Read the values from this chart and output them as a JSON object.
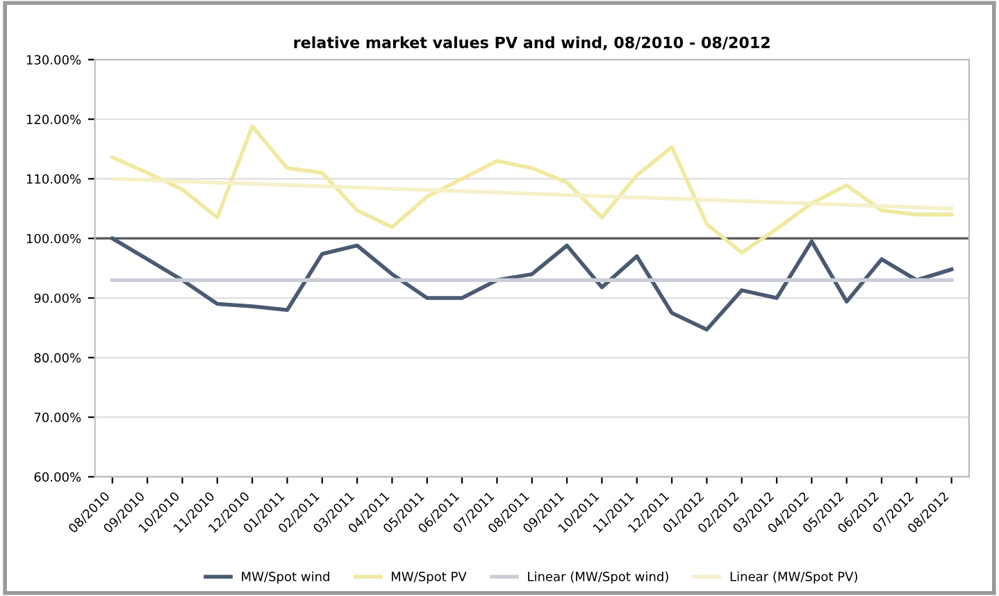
{
  "chart_data": {
    "type": "line",
    "title": "relative market values PV and wind, 08/2010 - 08/2012",
    "categories": [
      "08/2010",
      "09/2010",
      "10/2010",
      "11/2010",
      "12/2010",
      "01/2011",
      "02/2011",
      "03/2011",
      "04/2011",
      "05/2011",
      "06/2011",
      "07/2011",
      "08/2011",
      "09/2011",
      "10/2011",
      "11/2011",
      "12/2011",
      "01/2012",
      "02/2012",
      "03/2012",
      "04/2012",
      "05/2012",
      "06/2012",
      "07/2012",
      "08/2012"
    ],
    "series": [
      {
        "name": "MW/Spot wind",
        "color": "#4a5a72",
        "values": [
          100,
          96.5,
          93,
          89,
          88.6,
          88,
          97.4,
          98.8,
          94,
          90,
          90,
          93,
          94,
          98.8,
          91.8,
          97,
          87.5,
          84.7,
          91.3,
          90,
          99.5,
          89.4,
          96.5,
          93,
          94.8
        ]
      },
      {
        "name": "MW/Spot PV",
        "color": "#f0e9a0",
        "values": [
          113.6,
          111,
          108.2,
          103.5,
          118.8,
          111.8,
          111,
          104.7,
          101.9,
          107,
          110,
          113,
          111.8,
          109.4,
          103.5,
          110.6,
          115.3,
          102.4,
          97.6,
          101.6,
          105.9,
          108.9,
          104.7,
          104,
          104
        ]
      },
      {
        "name": "Linear (MW/Spot wind)",
        "color": "#c9ced8",
        "values": [
          93,
          null,
          null,
          null,
          null,
          null,
          null,
          null,
          null,
          null,
          null,
          null,
          null,
          null,
          null,
          null,
          null,
          null,
          null,
          null,
          null,
          null,
          null,
          null,
          93
        ]
      },
      {
        "name": "Linear (MW/Spot PV)",
        "color": "#f5f0c8",
        "values": [
          110,
          null,
          null,
          null,
          null,
          null,
          null,
          null,
          null,
          null,
          null,
          null,
          null,
          null,
          null,
          null,
          null,
          null,
          null,
          null,
          null,
          null,
          null,
          null,
          105
        ]
      }
    ],
    "ylim": [
      60,
      130
    ],
    "yticks": [
      {
        "value": 60,
        "label": "60.00%"
      },
      {
        "value": 70,
        "label": "70.00%"
      },
      {
        "value": 80,
        "label": "80.00%"
      },
      {
        "value": 90,
        "label": "90.00%"
      },
      {
        "value": 100,
        "label": "100.00%"
      },
      {
        "value": 110,
        "label": "110.00%"
      },
      {
        "value": 120,
        "label": "120.00%"
      },
      {
        "value": 130,
        "label": "130.00%"
      }
    ],
    "ref_lines": [
      {
        "axis": "y",
        "value": 100,
        "color": "#555555"
      }
    ],
    "grid": "y",
    "legend": "bottom",
    "marker": "none",
    "line_style": "solid"
  }
}
